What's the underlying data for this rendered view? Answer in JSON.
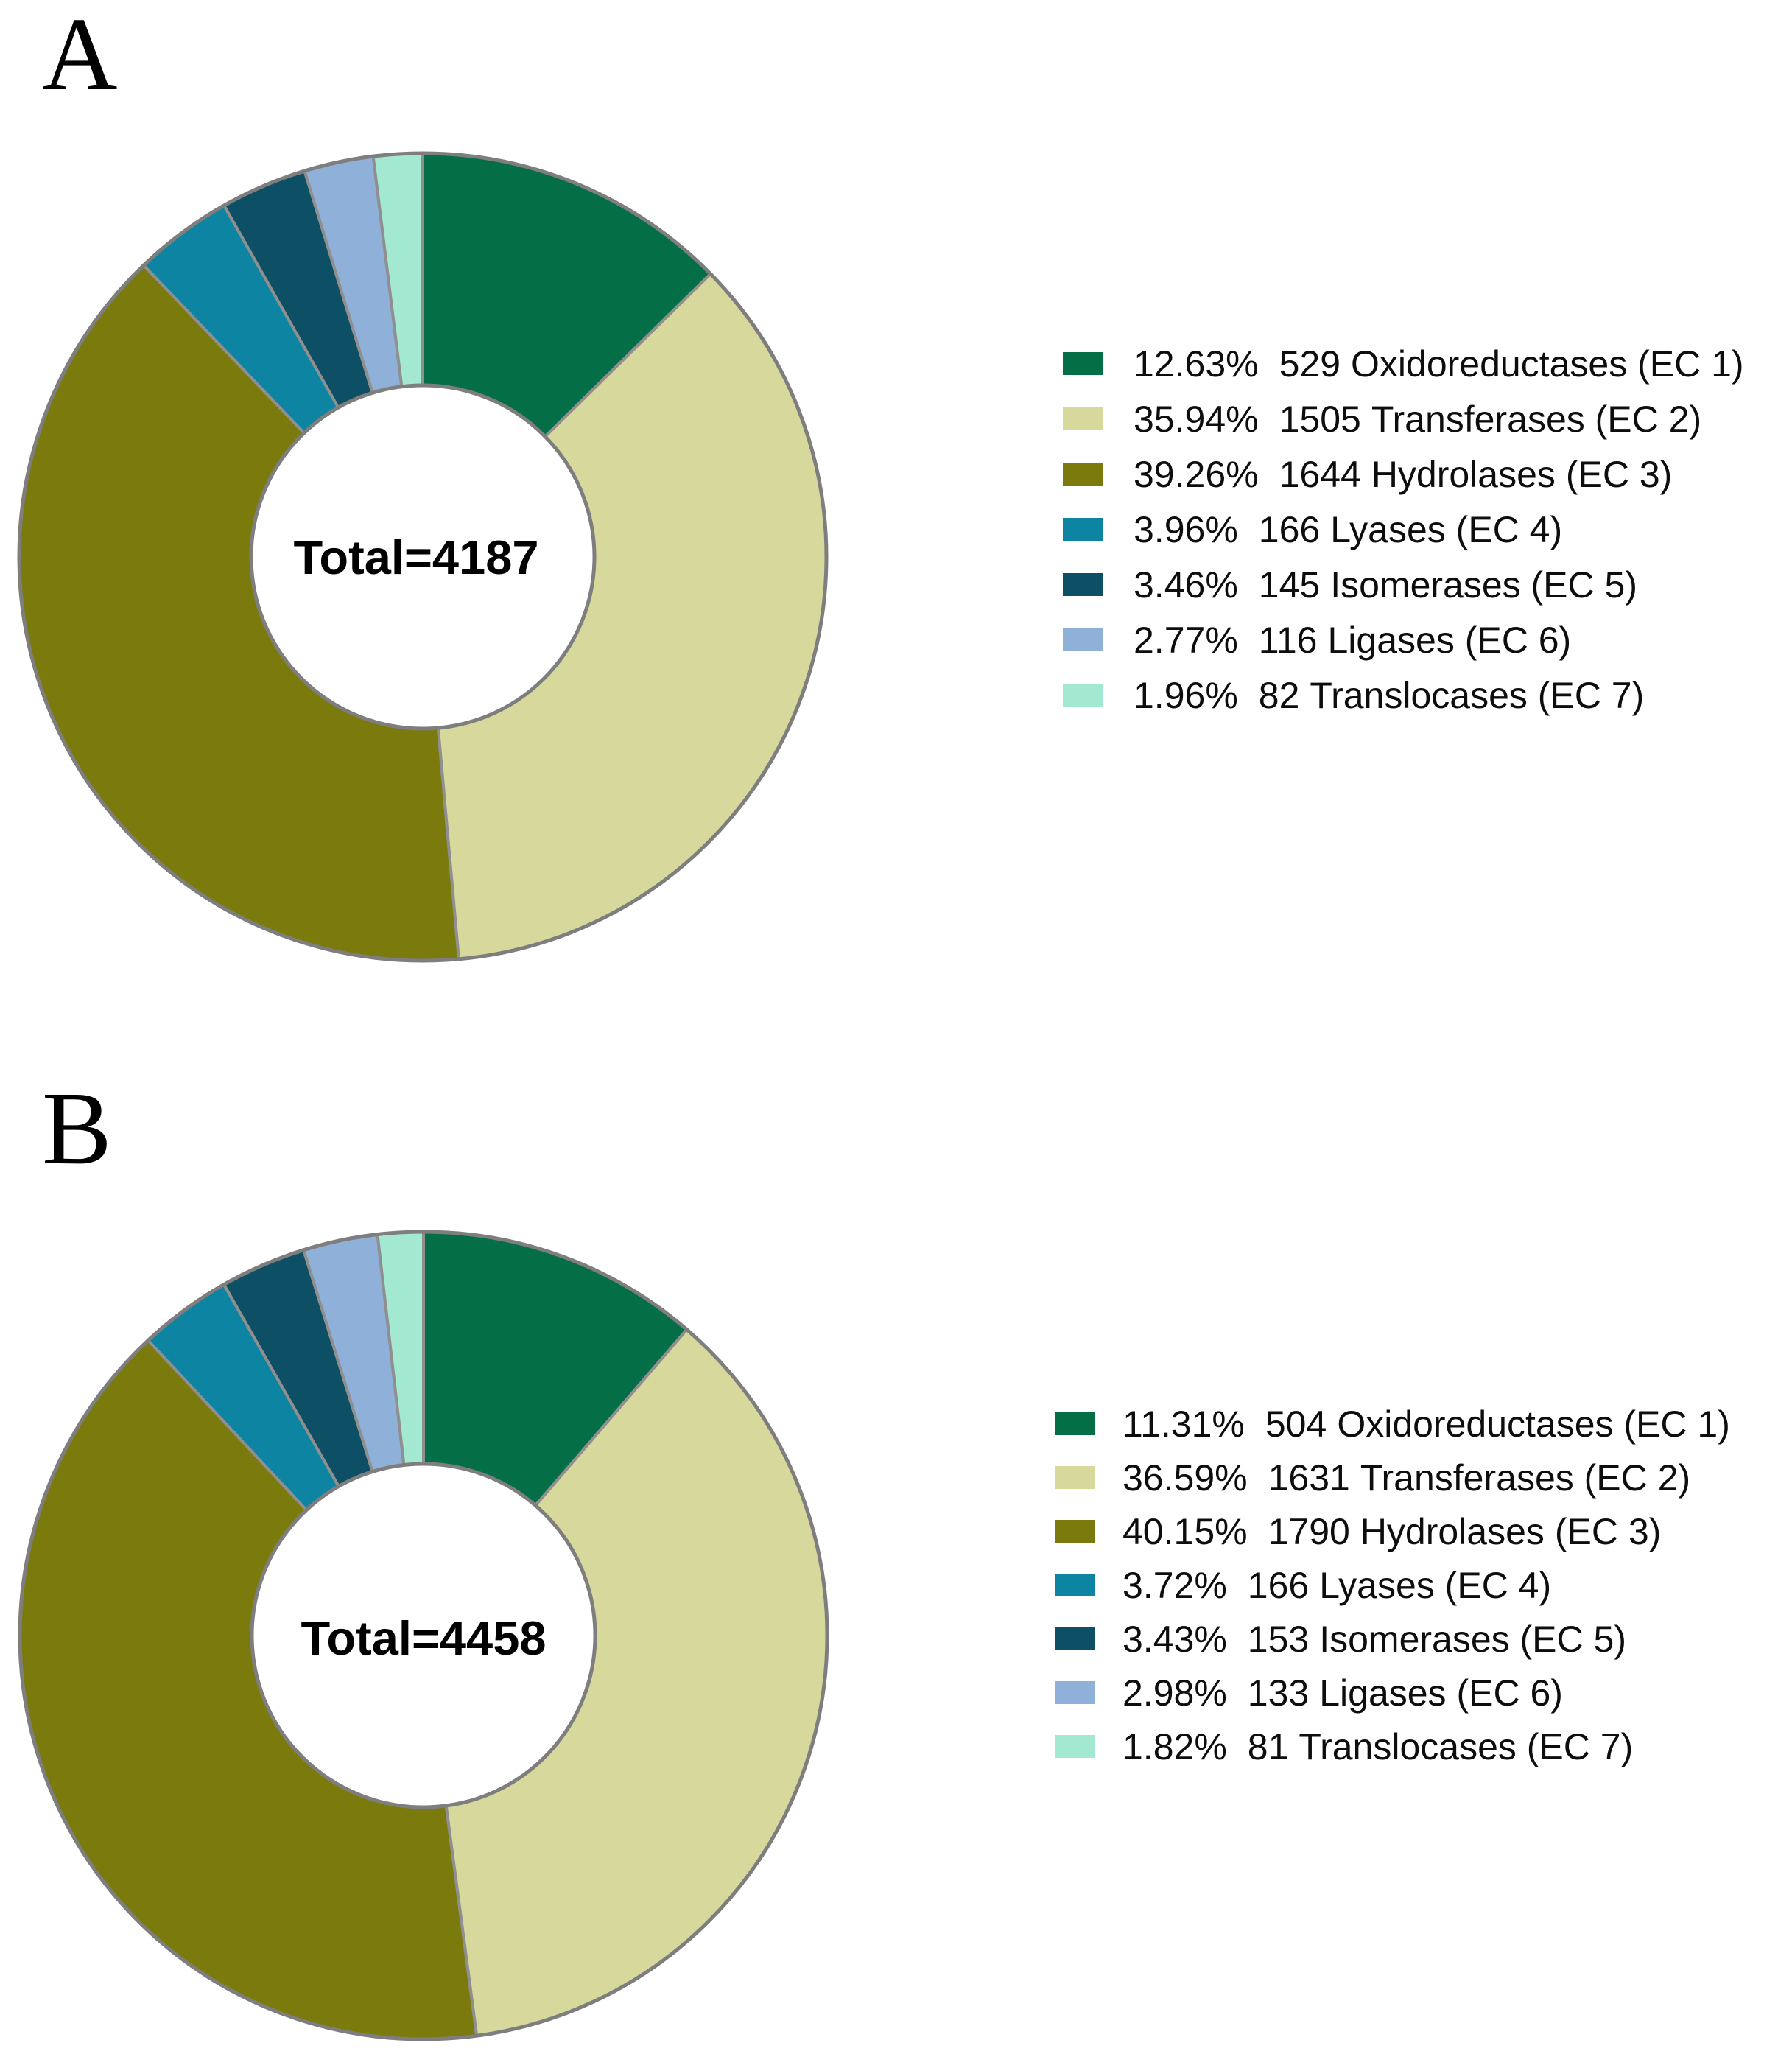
{
  "figure": {
    "panels": [
      {
        "id": "a",
        "panel_label": "A",
        "center_label": "Total=4187"
      },
      {
        "id": "b",
        "panel_label": "B",
        "center_label": "Total=4458"
      }
    ]
  },
  "chart_data": [
    {
      "type": "pie",
      "subtype": "donut",
      "panel": "a",
      "title": "",
      "center_label": "Total=4187",
      "total": 4187,
      "start_angle_deg": 0,
      "direction": "clockwise",
      "inner_radius_ratio": 0.425,
      "legend_position": "right",
      "slices": [
        {
          "pct": 12.63,
          "pct_label": "12.63%",
          "count": "529",
          "label": "Oxidoreductases (EC 1)",
          "color": "#046f46"
        },
        {
          "pct": 35.94,
          "pct_label": "35.94%",
          "count": "1505",
          "label": "Transferases (EC 2)",
          "color": "#d7d89c"
        },
        {
          "pct": 39.26,
          "pct_label": "39.26%",
          "count": "1644",
          "label": "Hydrolases (EC 3)",
          "color": "#7b7a0c"
        },
        {
          "pct": 3.96,
          "pct_label": "3.96%",
          "count": "166",
          "label": "Lyases (EC 4)",
          "color": "#0c84a2"
        },
        {
          "pct": 3.46,
          "pct_label": "3.46%",
          "count": "145",
          "label": "Isomerases (EC 5)",
          "color": "#0d4f64"
        },
        {
          "pct": 2.77,
          "pct_label": "2.77%",
          "count": "116",
          "label": "Ligases (EC 6)",
          "color": "#8fb0d8"
        },
        {
          "pct": 1.96,
          "pct_label": "1.96%",
          "count": "82",
          "label": "Translocases (EC 7)",
          "color": "#a3e8d0"
        }
      ]
    },
    {
      "type": "pie",
      "subtype": "donut",
      "panel": "b",
      "title": "",
      "center_label": "Total=4458",
      "total": 4458,
      "start_angle_deg": 0,
      "direction": "clockwise",
      "inner_radius_ratio": 0.425,
      "legend_position": "right",
      "slices": [
        {
          "pct": 11.31,
          "pct_label": "11.31%",
          "count": "504",
          "label": "Oxidoreductases (EC 1)",
          "color": "#046f46"
        },
        {
          "pct": 36.59,
          "pct_label": "36.59%",
          "count": "1631",
          "label": "Transferases (EC 2)",
          "color": "#d7d89c"
        },
        {
          "pct": 40.15,
          "pct_label": "40.15%",
          "count": "1790",
          "label": "Hydrolases (EC 3)",
          "color": "#7b7a0c"
        },
        {
          "pct": 3.72,
          "pct_label": "3.72%",
          "count": "166",
          "label": "Lyases (EC 4)",
          "color": "#0c84a2"
        },
        {
          "pct": 3.43,
          "pct_label": "3.43%",
          "count": "153",
          "label": "Isomerases (EC 5)",
          "color": "#0d4f64"
        },
        {
          "pct": 2.98,
          "pct_label": "2.98%",
          "count": "133",
          "label": "Ligases (EC 6)",
          "color": "#8fb0d8"
        },
        {
          "pct": 1.82,
          "pct_label": "1.82%",
          "count": "81",
          "label": "Translocases (EC 7)",
          "color": "#a3e8d0"
        }
      ]
    }
  ],
  "colors": {
    "background": "#ffffff",
    "slice_border": "#8f8f8f",
    "ring_border": "#7e7e7e",
    "legend_text": "#0d0d0d",
    "center_text": "#000000"
  }
}
